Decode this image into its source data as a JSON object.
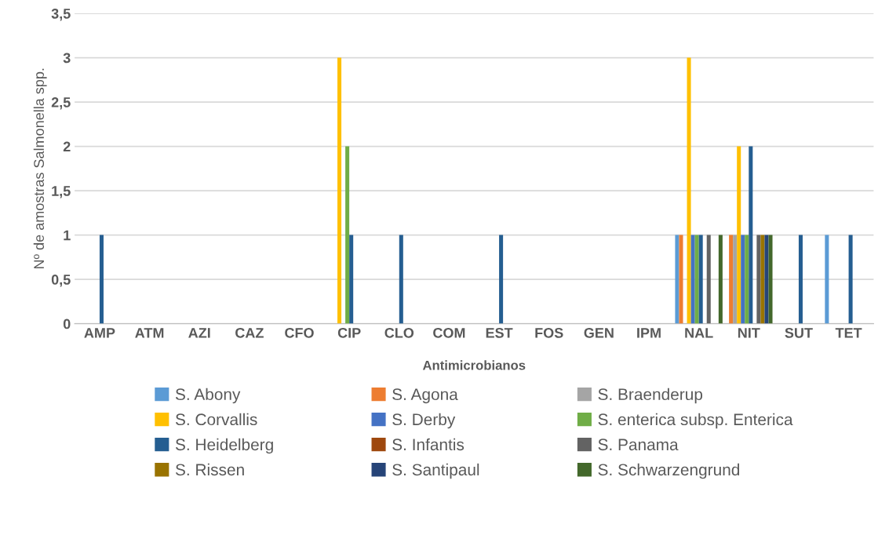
{
  "chart_data": {
    "type": "bar",
    "xlabel": "Antimicrobianos",
    "ylabel": "Nº de amostras Salmonella spp.",
    "categories": [
      "AMP",
      "ATM",
      "AZI",
      "CAZ",
      "CFO",
      "CIP",
      "CLO",
      "COM",
      "EST",
      "FOS",
      "GEN",
      "IPM",
      "NAL",
      "NIT",
      "SUT",
      "TET"
    ],
    "series": [
      {
        "name": "S. Abony",
        "color": "#5b9bd5",
        "values": [
          0,
          0,
          0,
          0,
          0,
          0,
          0,
          0,
          0,
          0,
          0,
          0,
          1,
          0,
          0,
          1
        ]
      },
      {
        "name": "S. Agona",
        "color": "#ed7d31",
        "values": [
          0,
          0,
          0,
          0,
          0,
          0,
          0,
          0,
          0,
          0,
          0,
          0,
          1,
          1,
          0,
          0
        ]
      },
      {
        "name": "S. Braenderup",
        "color": "#a5a5a5",
        "values": [
          0,
          0,
          0,
          0,
          0,
          0,
          0,
          0,
          0,
          0,
          0,
          0,
          0,
          1,
          0,
          0
        ]
      },
      {
        "name": "S. Corvallis",
        "color": "#ffc000",
        "values": [
          0,
          0,
          0,
          0,
          0,
          3,
          0,
          0,
          0,
          0,
          0,
          0,
          3,
          2,
          0,
          0
        ]
      },
      {
        "name": "S. Derby",
        "color": "#4472c4",
        "values": [
          0,
          0,
          0,
          0,
          0,
          0,
          0,
          0,
          0,
          0,
          0,
          0,
          1,
          1,
          0,
          0
        ]
      },
      {
        "name": "S. enterica subsp. Enterica",
        "color": "#70ad47",
        "values": [
          0,
          0,
          0,
          0,
          0,
          2,
          0,
          0,
          0,
          0,
          0,
          0,
          1,
          1,
          0,
          0
        ]
      },
      {
        "name": "S. Heidelberg",
        "color": "#255e91",
        "values": [
          1,
          0,
          0,
          0,
          0,
          1,
          1,
          0,
          1,
          0,
          0,
          0,
          1,
          2,
          1,
          1
        ]
      },
      {
        "name": "S. Infantis",
        "color": "#9e480e",
        "values": [
          0,
          0,
          0,
          0,
          0,
          0,
          0,
          0,
          0,
          0,
          0,
          0,
          0,
          0,
          0,
          0
        ]
      },
      {
        "name": "S. Panama",
        "color": "#636363",
        "values": [
          0,
          0,
          0,
          0,
          0,
          0,
          0,
          0,
          0,
          0,
          0,
          0,
          1,
          1,
          0,
          0
        ]
      },
      {
        "name": "S. Rissen",
        "color": "#997300",
        "values": [
          0,
          0,
          0,
          0,
          0,
          0,
          0,
          0,
          0,
          0,
          0,
          0,
          0,
          1,
          0,
          0
        ]
      },
      {
        "name": "S. Santipaul",
        "color": "#264478",
        "values": [
          0,
          0,
          0,
          0,
          0,
          0,
          0,
          0,
          0,
          0,
          0,
          0,
          0,
          1,
          0,
          0
        ]
      },
      {
        "name": "S. Schwarzengrund",
        "color": "#43682b",
        "values": [
          0,
          0,
          0,
          0,
          0,
          0,
          0,
          0,
          0,
          0,
          0,
          0,
          1,
          1,
          0,
          0
        ]
      }
    ],
    "ylim": [
      0,
      3.5
    ],
    "yticks": [
      {
        "value": 0,
        "label": "0"
      },
      {
        "value": 0.5,
        "label": "0,5"
      },
      {
        "value": 1,
        "label": "1"
      },
      {
        "value": 1.5,
        "label": "1,5"
      },
      {
        "value": 2,
        "label": "2"
      },
      {
        "value": 2.5,
        "label": "2,5"
      },
      {
        "value": 3,
        "label": "3"
      },
      {
        "value": 3.5,
        "label": "3,5"
      }
    ],
    "grid": "y",
    "legend": "bottom"
  }
}
